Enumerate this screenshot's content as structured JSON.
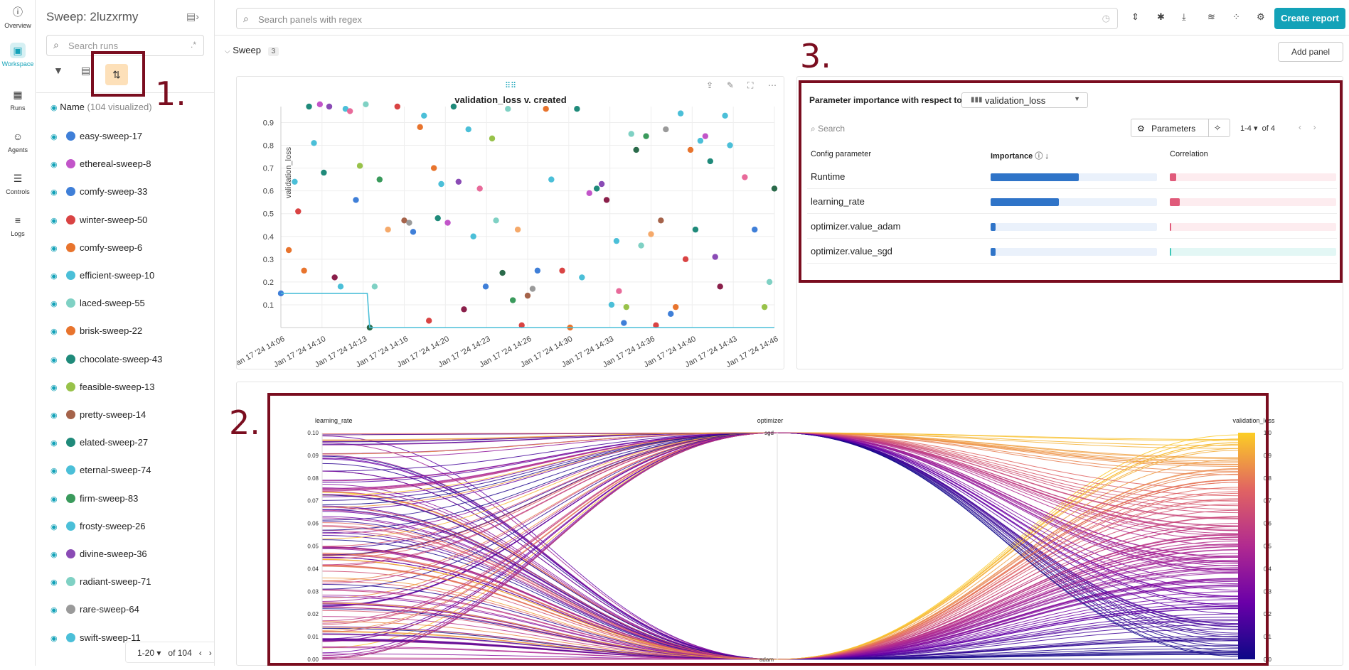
{
  "nav": [
    {
      "label": "Overview",
      "icon": "info-icon",
      "top": 6
    },
    {
      "label": "Workspace",
      "icon": "workspace-icon",
      "top": 60,
      "active": true
    },
    {
      "label": "Runs",
      "icon": "table-icon",
      "top": 122
    },
    {
      "label": "Agents",
      "icon": "agents-icon",
      "top": 181
    },
    {
      "label": "Controls",
      "icon": "sliders-icon",
      "top": 240
    },
    {
      "label": "Logs",
      "icon": "list-icon",
      "top": 299
    }
  ],
  "runs_panel": {
    "title": "Sweep: 2luzxrmy",
    "search_placeholder": "Search runs",
    "regex": ".*",
    "name_header": "Name",
    "visualized": "(104 visualized)",
    "pager": "1-20",
    "pager_of": "of 104",
    "runs": [
      {
        "name": "easy-sweep-17",
        "color": "#3f7fd8"
      },
      {
        "name": "ethereal-sweep-8",
        "color": "#c255c9"
      },
      {
        "name": "comfy-sweep-33",
        "color": "#3f7fd8"
      },
      {
        "name": "winter-sweep-50",
        "color": "#d94343"
      },
      {
        "name": "comfy-sweep-6",
        "color": "#e8742d"
      },
      {
        "name": "efficient-sweep-10",
        "color": "#4bbfd8"
      },
      {
        "name": "laced-sweep-55",
        "color": "#7fd1c4"
      },
      {
        "name": "brisk-sweep-22",
        "color": "#e8742d"
      },
      {
        "name": "chocolate-sweep-43",
        "color": "#1f8a7a"
      },
      {
        "name": "feasible-sweep-13",
        "color": "#98c24a"
      },
      {
        "name": "pretty-sweep-14",
        "color": "#a5634a"
      },
      {
        "name": "elated-sweep-27",
        "color": "#1f8a7a"
      },
      {
        "name": "eternal-sweep-74",
        "color": "#4bbfd8"
      },
      {
        "name": "firm-sweep-83",
        "color": "#3a9a5c"
      },
      {
        "name": "frosty-sweep-26",
        "color": "#4bbfd8"
      },
      {
        "name": "divine-sweep-36",
        "color": "#8a4bb5"
      },
      {
        "name": "radiant-sweep-71",
        "color": "#7fd1c4"
      },
      {
        "name": "rare-sweep-64",
        "color": "#9a9a9a"
      },
      {
        "name": "swift-sweep-11",
        "color": "#4bbfd8"
      }
    ]
  },
  "topbar": {
    "search_placeholder": "Search panels with regex",
    "create_report": "Create report"
  },
  "section": {
    "title": "Sweep",
    "count": "3",
    "add_panel": "Add panel"
  },
  "annotations": {
    "one": "1.",
    "two": "2.",
    "three": "3."
  },
  "scatter": {
    "title": "validation_loss v. created",
    "ylabel": "validation_loss"
  },
  "importance": {
    "title": "Parameter importance with respect to",
    "metric": "validation_loss",
    "search_placeholder": "Search",
    "params_button": "Parameters",
    "pager": "1-4",
    "pager_of": "of 4",
    "col_param": "Config parameter",
    "col_importance": "Importance",
    "col_correlation": "Correlation",
    "rows": [
      {
        "name": "Runtime",
        "importance": 0.53,
        "correlation": 0.04,
        "corr_color": "#e05a7a"
      },
      {
        "name": "learning_rate",
        "importance": 0.41,
        "correlation": 0.06,
        "corr_color": "#e05a7a"
      },
      {
        "name": "optimizer.value_adam",
        "importance": 0.03,
        "correlation": 0.005,
        "corr_color": "#e05a7a"
      },
      {
        "name": "optimizer.value_sgd",
        "importance": 0.03,
        "correlation": 0.005,
        "corr_color": "#3cc7b8"
      }
    ]
  },
  "chart_data": [
    {
      "type": "scatter",
      "title": "validation_loss v. created",
      "ylabel": "validation_loss",
      "ylim": [
        0,
        1
      ],
      "x_ticks": [
        "Jan 17 '24 14:06",
        "Jan 17 '24 14:10",
        "Jan 17 '24 14:13",
        "Jan 17 '24 14:16",
        "Jan 17 '24 14:20",
        "Jan 17 '24 14:23",
        "Jan 17 '24 14:26",
        "Jan 17 '24 14:30",
        "Jan 17 '24 14:33",
        "Jan 17 '24 14:36",
        "Jan 17 '24 14:40",
        "Jan 17 '24 14:43",
        "Jan 17 '24 14:46"
      ],
      "y_ticks": [
        "0.1",
        "0.2",
        "0.3",
        "0.4",
        "0.5",
        "0.6",
        "0.7",
        "0.8",
        "0.9"
      ],
      "points": [
        [
          0.0,
          0.15
        ],
        [
          0.016,
          0.34
        ],
        [
          0.028,
          0.64
        ],
        [
          0.035,
          0.51
        ],
        [
          0.047,
          0.25
        ],
        [
          0.057,
          0.97
        ],
        [
          0.067,
          0.81
        ],
        [
          0.079,
          0.98
        ],
        [
          0.087,
          0.68
        ],
        [
          0.098,
          0.97
        ],
        [
          0.109,
          0.22
        ],
        [
          0.121,
          0.18
        ],
        [
          0.131,
          0.96
        ],
        [
          0.14,
          0.95
        ],
        [
          0.152,
          0.56
        ],
        [
          0.16,
          0.71
        ],
        [
          0.172,
          0.98
        ],
        [
          0.18,
          0.0
        ],
        [
          0.19,
          0.18
        ],
        [
          0.2,
          0.65
        ],
        [
          0.217,
          0.43
        ],
        [
          0.236,
          0.97
        ],
        [
          0.25,
          0.47
        ],
        [
          0.26,
          0.46
        ],
        [
          0.268,
          0.42
        ],
        [
          0.282,
          0.88
        ],
        [
          0.29,
          0.93
        ],
        [
          0.3,
          0.03
        ],
        [
          0.31,
          0.7
        ],
        [
          0.318,
          0.48
        ],
        [
          0.325,
          0.63
        ],
        [
          0.338,
          0.46
        ],
        [
          0.35,
          0.97
        ],
        [
          0.36,
          0.64
        ],
        [
          0.371,
          0.08
        ],
        [
          0.38,
          0.87
        ],
        [
          0.39,
          0.4
        ],
        [
          0.403,
          0.61
        ],
        [
          0.415,
          0.18
        ],
        [
          0.428,
          0.83
        ],
        [
          0.436,
          0.47
        ],
        [
          0.449,
          0.24
        ],
        [
          0.46,
          0.96
        ],
        [
          0.47,
          0.12
        ],
        [
          0.48,
          0.43
        ],
        [
          0.488,
          0.01
        ],
        [
          0.5,
          0.14
        ],
        [
          0.51,
          0.17
        ],
        [
          0.52,
          0.25
        ],
        [
          0.537,
          0.96
        ],
        [
          0.548,
          0.65
        ],
        [
          0.57,
          0.25
        ],
        [
          0.586,
          0.0
        ],
        [
          0.6,
          0.96
        ],
        [
          0.61,
          0.22
        ],
        [
          0.625,
          0.59
        ],
        [
          0.64,
          0.61
        ],
        [
          0.65,
          0.63
        ],
        [
          0.66,
          0.56
        ],
        [
          0.67,
          0.1
        ],
        [
          0.68,
          0.38
        ],
        [
          0.685,
          0.16
        ],
        [
          0.695,
          0.02
        ],
        [
          0.7,
          0.09
        ],
        [
          0.71,
          0.85
        ],
        [
          0.72,
          0.78
        ],
        [
          0.73,
          0.36
        ],
        [
          0.74,
          0.84
        ],
        [
          0.75,
          0.41
        ],
        [
          0.76,
          0.01
        ],
        [
          0.77,
          0.47
        ],
        [
          0.78,
          0.87
        ],
        [
          0.79,
          0.06
        ],
        [
          0.8,
          0.09
        ],
        [
          0.81,
          0.94
        ],
        [
          0.82,
          0.3
        ],
        [
          0.83,
          0.78
        ],
        [
          0.84,
          0.43
        ],
        [
          0.85,
          0.82
        ],
        [
          0.86,
          0.84
        ],
        [
          0.87,
          0.73
        ],
        [
          0.88,
          0.31
        ],
        [
          0.89,
          0.18
        ],
        [
          0.9,
          0.93
        ],
        [
          0.91,
          0.8
        ],
        [
          0.94,
          0.66
        ],
        [
          0.96,
          0.43
        ],
        [
          0.98,
          0.09
        ],
        [
          0.99,
          0.2
        ],
        [
          1.0,
          0.61
        ]
      ],
      "best_line": [
        [
          0.0,
          0.15
        ],
        [
          0.175,
          0.15
        ],
        [
          0.18,
          0.0
        ],
        [
          1.0,
          0.0
        ]
      ]
    },
    {
      "type": "parallel_coordinates",
      "axes": [
        {
          "name": "learning_rate",
          "ticks": [
            "0.00",
            "0.01",
            "0.02",
            "0.03",
            "0.04",
            "0.05",
            "0.06",
            "0.07",
            "0.08",
            "0.09",
            "0.10"
          ]
        },
        {
          "name": "optimizer",
          "ticks": [
            "adam",
            "sgd"
          ]
        },
        {
          "name": "validation_loss",
          "ticks": [
            "0.0",
            "0.1",
            "0.2",
            "0.3",
            "0.4",
            "0.5",
            "0.6",
            "0.7",
            "0.8",
            "0.9",
            "1.0"
          ]
        }
      ]
    }
  ]
}
